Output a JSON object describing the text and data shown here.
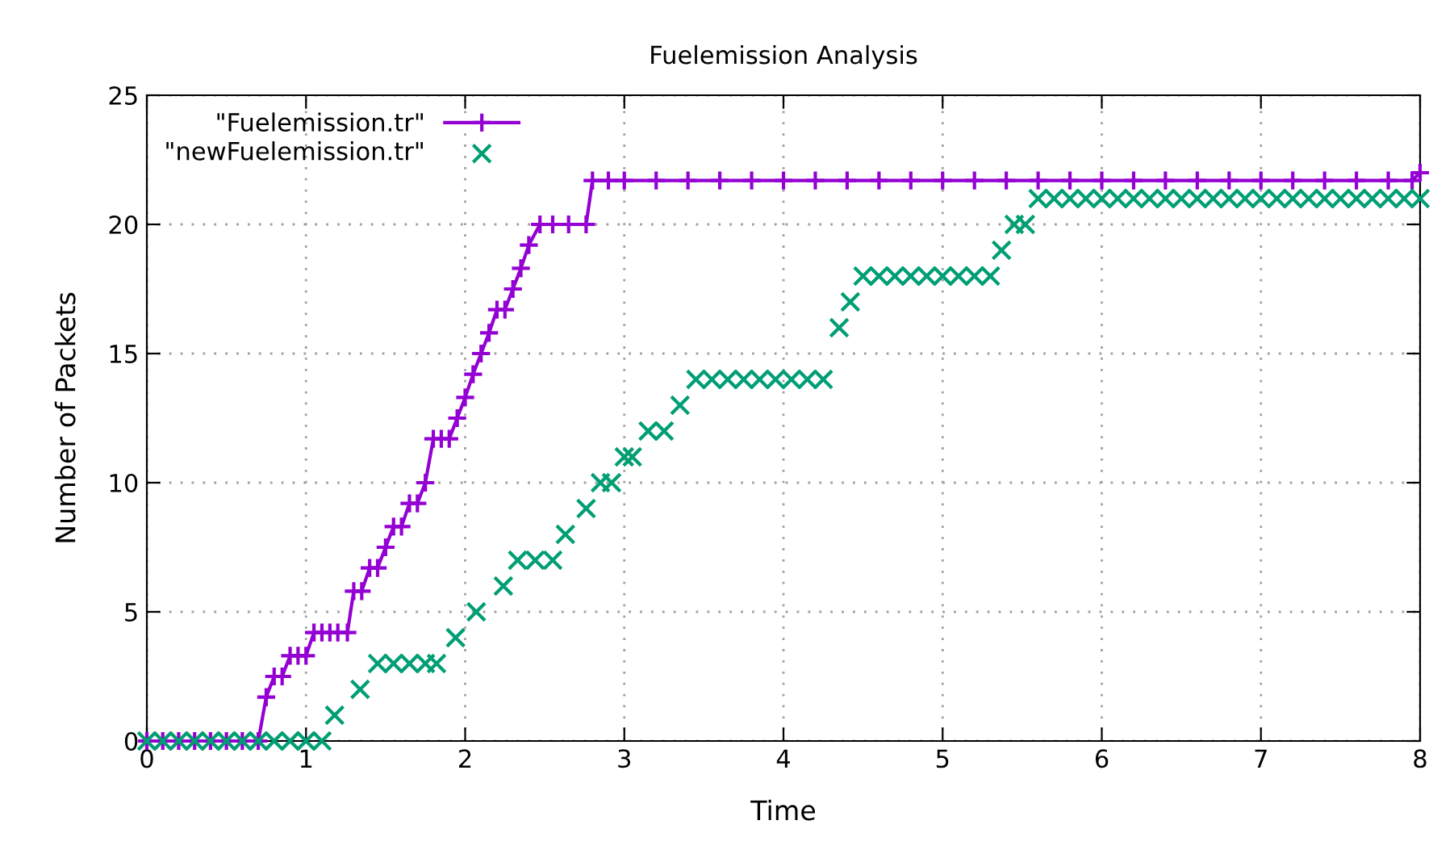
{
  "chart_data": {
    "type": "line",
    "title": "Fuelemission Analysis",
    "xlabel": "Time",
    "ylabel": "Number of Packets",
    "xlim": [
      0,
      8
    ],
    "ylim": [
      0,
      25
    ],
    "xticks": [
      0,
      1,
      2,
      3,
      4,
      5,
      6,
      7,
      8
    ],
    "yticks": [
      0,
      5,
      10,
      15,
      20,
      25
    ],
    "grid": true,
    "legend": "top left",
    "marker": "cross",
    "series": [
      {
        "name": "\"Fuelemission.tr\"",
        "color": "#9400d3",
        "x": [
          0,
          0.1,
          0.2,
          0.3,
          0.4,
          0.5,
          0.6,
          0.7,
          0.75,
          0.8,
          0.85,
          0.9,
          0.95,
          1.0,
          1.05,
          1.1,
          1.15,
          1.2,
          1.26,
          1.3,
          1.35,
          1.4,
          1.45,
          1.5,
          1.55,
          1.6,
          1.65,
          1.7,
          1.75,
          1.8,
          1.85,
          1.9,
          1.95,
          2.0,
          2.05,
          2.1,
          2.15,
          2.2,
          2.25,
          2.3,
          2.35,
          2.4,
          2.47,
          2.55,
          2.65,
          2.76,
          2.8,
          2.9,
          3.0,
          3.2,
          3.4,
          3.6,
          3.8,
          4.0,
          4.2,
          4.4,
          4.6,
          4.8,
          5.0,
          5.2,
          5.4,
          5.6,
          5.8,
          6.0,
          6.2,
          6.4,
          6.6,
          6.8,
          7.0,
          7.2,
          7.4,
          7.6,
          7.8,
          7.95,
          8.0
        ],
        "values": [
          0,
          0,
          0,
          0,
          0,
          0,
          0,
          0,
          1.7,
          2.5,
          2.5,
          3.3,
          3.3,
          3.3,
          4.2,
          4.2,
          4.2,
          4.2,
          4.2,
          5.8,
          5.8,
          6.7,
          6.7,
          7.5,
          8.3,
          8.3,
          9.2,
          9.2,
          10,
          11.7,
          11.7,
          11.7,
          12.5,
          13.3,
          14.2,
          15,
          15.8,
          16.7,
          16.7,
          17.5,
          18.3,
          19.2,
          20,
          20,
          20,
          20,
          21.7,
          21.7,
          21.7,
          21.7,
          21.7,
          21.7,
          21.7,
          21.7,
          21.7,
          21.7,
          21.7,
          21.7,
          21.7,
          21.7,
          21.7,
          21.7,
          21.7,
          21.7,
          21.7,
          21.7,
          21.7,
          21.7,
          21.7,
          21.7,
          21.7,
          21.7,
          21.7,
          21.7,
          22
        ]
      },
      {
        "name": "\"newFuelemission.tr\"",
        "type": "scatter",
        "color": "#009e73",
        "x": [
          0,
          0.1,
          0.2,
          0.3,
          0.4,
          0.5,
          0.6,
          0.7,
          0.8,
          0.9,
          1.0,
          1.1,
          1.18,
          1.34,
          1.45,
          1.55,
          1.65,
          1.75,
          1.82,
          1.94,
          2.07,
          2.24,
          2.33,
          2.44,
          2.55,
          2.63,
          2.76,
          2.85,
          2.92,
          3.0,
          3.05,
          3.15,
          3.25,
          3.35,
          3.45,
          3.55,
          3.65,
          3.75,
          3.85,
          3.95,
          4.05,
          4.15,
          4.25,
          4.35,
          4.42,
          4.5,
          4.6,
          4.7,
          4.8,
          4.9,
          5.0,
          5.1,
          5.2,
          5.3,
          5.37,
          5.45,
          5.52,
          5.6,
          5.7,
          5.8,
          5.9,
          6.0,
          6.1,
          6.2,
          6.3,
          6.4,
          6.5,
          6.6,
          6.7,
          6.8,
          6.9,
          7.0,
          7.1,
          7.2,
          7.3,
          7.4,
          7.5,
          7.6,
          7.7,
          7.8,
          7.9,
          8.0
        ],
        "values": [
          0,
          0,
          0,
          0,
          0,
          0,
          0,
          0,
          0,
          0,
          0,
          0,
          1,
          2,
          3,
          3,
          3,
          3,
          3,
          4,
          5,
          6,
          7,
          7,
          7,
          8,
          9,
          10,
          10,
          11,
          11,
          12,
          12,
          13,
          14,
          14,
          14,
          14,
          14,
          14,
          14,
          14,
          14,
          16,
          17,
          18,
          18,
          18,
          18,
          18,
          18,
          18,
          18,
          18,
          19,
          20,
          20,
          21,
          21,
          21,
          21,
          21,
          21,
          21,
          21,
          21,
          21,
          21,
          21,
          21,
          21,
          21,
          21,
          21,
          21,
          21,
          21,
          21,
          21,
          21,
          21,
          21
        ]
      }
    ]
  }
}
